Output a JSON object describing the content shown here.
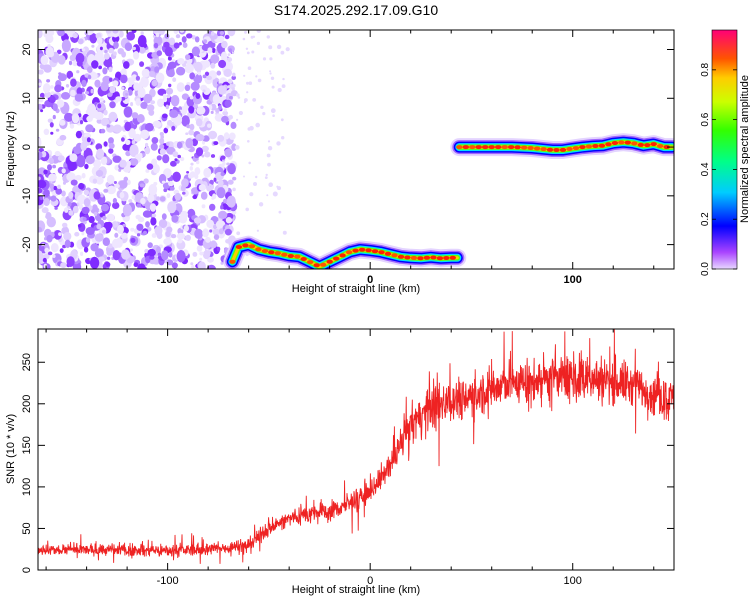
{
  "chart_data": [
    {
      "type": "heatmap",
      "title": "S174.2025.292.17.09.G10",
      "xlabel": "Height of straight line (km)",
      "ylabel": "Frequency (Hz)",
      "xlim": [
        -164,
        150
      ],
      "ylim": [
        -25,
        24
      ],
      "xticks": [
        -100,
        0,
        100
      ],
      "yticks": [
        -20,
        -10,
        0,
        10,
        20
      ],
      "colorbar": {
        "label": "Normalized spectral amplitude",
        "range": [
          0,
          0.96
        ],
        "ticks": [
          0.0,
          0.2,
          0.4,
          0.6,
          0.8
        ]
      },
      "noise_region": {
        "x_from": -164,
        "x_to": -70
      },
      "ridge_segments": [
        {
          "name": "low-frequency track",
          "x": [
            -68,
            -65,
            -60,
            -55,
            -50,
            -45,
            -40,
            -35,
            -30,
            -25,
            -20,
            -15,
            -10,
            -5,
            0,
            5,
            10,
            15,
            20,
            25,
            30,
            35,
            40,
            43
          ],
          "y": [
            -23.5,
            -20.5,
            -20.0,
            -21.0,
            -21.5,
            -21.8,
            -22.3,
            -22.5,
            -23.5,
            -24.5,
            -23.5,
            -22.5,
            -21.5,
            -21.0,
            -21.2,
            -21.5,
            -22.0,
            -22.5,
            -22.7,
            -22.8,
            -22.6,
            -22.8,
            -22.7,
            -22.7
          ]
        },
        {
          "name": "zero-frequency track",
          "x": [
            44,
            50,
            60,
            70,
            80,
            85,
            90,
            95,
            100,
            105,
            110,
            115,
            120,
            125,
            130,
            135,
            140,
            145,
            149
          ],
          "y": [
            0.0,
            0.0,
            0.0,
            0.0,
            -0.2,
            -0.4,
            -0.6,
            -0.6,
            -0.3,
            0.0,
            0.2,
            0.3,
            0.8,
            1.0,
            0.8,
            0.3,
            0.6,
            0.0,
            0.0
          ]
        }
      ]
    },
    {
      "type": "line",
      "xlabel": "Height of straight line (km)",
      "ylabel": "SNR (10 * v/v)",
      "xlim": [
        -164,
        150
      ],
      "ylim": [
        0,
        290
      ],
      "xticks": [
        -100,
        0,
        100
      ],
      "yticks": [
        0,
        50,
        100,
        150,
        200,
        250
      ],
      "color": "#ee2222",
      "trend": {
        "x": [
          -164,
          -140,
          -120,
          -100,
          -80,
          -70,
          -60,
          -50,
          -45,
          -40,
          -30,
          -20,
          -10,
          0,
          5,
          10,
          15,
          20,
          30,
          40,
          50,
          60,
          70,
          80,
          90,
          100,
          110,
          120,
          130,
          140,
          150
        ],
        "y": [
          24,
          24,
          24,
          23,
          25,
          27,
          30,
          50,
          56,
          62,
          68,
          70,
          80,
          95,
          110,
          125,
          150,
          175,
          195,
          205,
          210,
          218,
          225,
          228,
          230,
          232,
          230,
          228,
          222,
          212,
          205
        ]
      }
    }
  ]
}
